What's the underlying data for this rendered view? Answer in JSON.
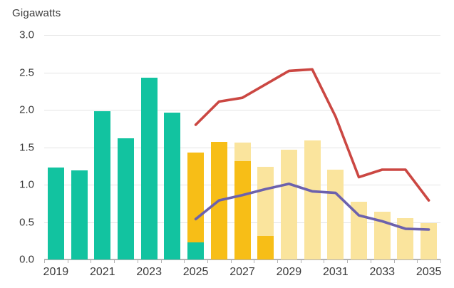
{
  "chart_data": {
    "type": "bar+line combo",
    "title": "Gigawatts",
    "ylabel": "Gigawatts",
    "xlabel": "",
    "grid": true,
    "legend_position": "none",
    "ylim": [
      0,
      3.0
    ],
    "y_axis_labels": [
      "3.0",
      "2.5",
      "2.0",
      "1.5",
      "1.0",
      "0.5",
      "0.0"
    ],
    "x": [
      2019,
      2020,
      2021,
      2022,
      2023,
      2024,
      2025,
      2026,
      2027,
      2028,
      2029,
      2030,
      2031,
      2032,
      2033,
      2034,
      2035
    ],
    "x_axis_labels": [
      "2019",
      "2021",
      "2023",
      "2025",
      "2027",
      "2029",
      "2031",
      "2033",
      "2035"
    ],
    "bar_series": [
      {
        "name": "teal-bars",
        "color": "#12c3a0",
        "values": [
          1.23,
          1.19,
          1.98,
          1.62,
          2.43,
          1.96,
          0.23,
          0,
          0,
          0,
          0,
          0,
          0,
          0,
          0,
          0,
          0
        ]
      },
      {
        "name": "gold-bars",
        "color": "#f7be17",
        "values": [
          0,
          0,
          0,
          0,
          0,
          0,
          1.2,
          1.57,
          1.31,
          0.31,
          0,
          0,
          0,
          0,
          0,
          0,
          0
        ]
      },
      {
        "name": "pale-yellow-bars",
        "color": "#fae49d",
        "values": [
          0,
          0,
          0,
          0,
          0,
          0,
          0,
          0,
          0.25,
          0.93,
          1.47,
          1.59,
          1.2,
          0.77,
          0.64,
          0.55,
          0.49
        ]
      }
    ],
    "line_series": [
      {
        "name": "red-line",
        "color": "#cb4742",
        "x": [
          2025,
          2026,
          2027,
          2028,
          2029,
          2030,
          2031,
          2032,
          2033,
          2034,
          2035
        ],
        "values": [
          1.8,
          2.11,
          2.16,
          2.34,
          2.52,
          2.54,
          1.91,
          1.1,
          1.2,
          1.2,
          0.79
        ]
      },
      {
        "name": "purple-line",
        "color": "#6c61ad",
        "x": [
          2025,
          2026,
          2027,
          2028,
          2029,
          2030,
          2031,
          2032,
          2033,
          2034,
          2035
        ],
        "values": [
          0.54,
          0.79,
          0.86,
          0.94,
          1.01,
          0.91,
          0.89,
          0.59,
          0.51,
          0.41,
          0.4
        ]
      }
    ]
  },
  "colors": {
    "grid": "#e4e4e4",
    "axis": "#b3b3b3",
    "text": "#3b3b3b",
    "background": "#ffffff"
  }
}
